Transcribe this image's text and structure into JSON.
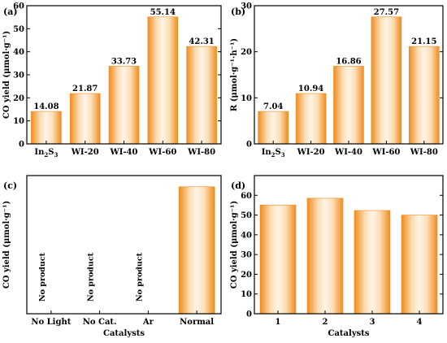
{
  "colors": {
    "bar_edge": "#F08C1E",
    "bar_mid": "#FCE3C0",
    "bar_light": "#FFF4E6",
    "bar_dark": "#F4A04A"
  },
  "chart_data": [
    {
      "panel": "(a)",
      "type": "bar",
      "categories": [
        "In2S3",
        "WI-20",
        "WI-40",
        "WI-60",
        "WI-80"
      ],
      "category_labels": [
        {
          "main": "In",
          "sub": "2",
          "tail": "S",
          "sub2": "3"
        },
        {
          "main": "WI-20"
        },
        {
          "main": "WI-40"
        },
        {
          "main": "WI-60"
        },
        {
          "main": "WI-80"
        }
      ],
      "values": [
        14.08,
        21.87,
        33.73,
        55.14,
        42.31
      ],
      "data_labels": [
        "14.08",
        "21.87",
        "33.73",
        "55.14",
        "42.31"
      ],
      "xlabel": "",
      "ylabel": "CO yield (μmol·g⁻¹)",
      "ylim": [
        0,
        60
      ],
      "yticks": [
        0,
        10,
        20,
        30,
        40,
        50,
        60
      ]
    },
    {
      "panel": "(b)",
      "type": "bar",
      "categories": [
        "In2S3",
        "WI-20",
        "WI-40",
        "WI-60",
        "WI-80"
      ],
      "category_labels": [
        {
          "main": "In",
          "sub": "2",
          "tail": "S",
          "sub2": "3"
        },
        {
          "main": "WI-20"
        },
        {
          "main": "WI-40"
        },
        {
          "main": "WI-60"
        },
        {
          "main": "WI-80"
        }
      ],
      "values": [
        7.04,
        10.94,
        16.86,
        27.57,
        21.15
      ],
      "data_labels": [
        "7.04",
        "10.94",
        "16.86",
        "27.57",
        "21.15"
      ],
      "xlabel": "",
      "ylabel": "R (μmol·g⁻¹·h⁻¹)",
      "ylim": [
        0,
        30
      ],
      "yticks": [
        0,
        10,
        20,
        30
      ]
    },
    {
      "panel": "(c)",
      "type": "bar",
      "categories": [
        "No Light",
        "No Cat.",
        "Ar",
        "Normal"
      ],
      "values": [
        0,
        0,
        0,
        55.14
      ],
      "annotations": [
        "No product",
        "No product",
        "No product",
        ""
      ],
      "xlabel": "Catalysts",
      "ylabel": "CO yield (μmol·g⁻¹)",
      "ylim": [
        0,
        60
      ],
      "yticks": []
    },
    {
      "panel": "(d)",
      "type": "bar",
      "categories": [
        "1",
        "2",
        "3",
        "4"
      ],
      "values": [
        55.1,
        58.5,
        52.3,
        50.0
      ],
      "xlabel": "Catalysts",
      "ylabel": "CO yield (μmol·g⁻¹)",
      "ylim": [
        0,
        70
      ],
      "yticks": [
        0,
        10,
        20,
        30,
        40,
        50,
        60
      ]
    }
  ]
}
